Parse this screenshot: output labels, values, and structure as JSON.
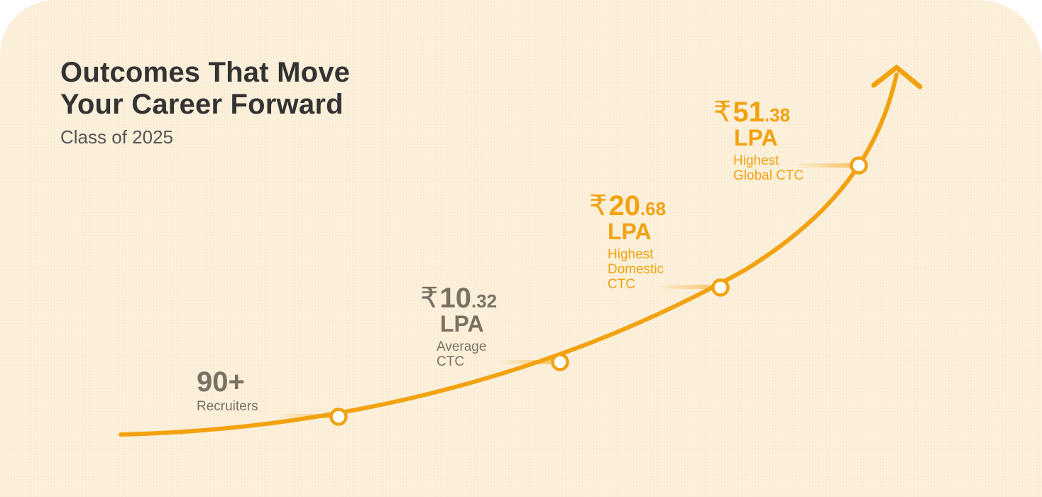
{
  "heading": {
    "line1": "Outcomes That Move",
    "line2": "Your Career Forward"
  },
  "subtitle": "Class of 2025",
  "colors": {
    "background": "#fdf1dc",
    "curve": "#f2a20f",
    "muted_text": "#7a7064",
    "heading_text": "#333333"
  },
  "milestones": [
    {
      "value": "90+",
      "label": "Recruiters"
    },
    {
      "currency": "₹",
      "whole": "10",
      "decimal": ".32",
      "unit": "LPA",
      "label_line1": "Average",
      "label_line2": "CTC"
    },
    {
      "currency": "₹",
      "whole": "20",
      "decimal": ".68",
      "unit": "LPA",
      "label_line1": "Highest",
      "label_line2": "Domestic",
      "label_line3": "CTC"
    },
    {
      "currency": "₹",
      "whole": "51",
      "decimal": ".38",
      "unit": "LPA",
      "label_line1": "Highest",
      "label_line2": "Global CTC"
    }
  ]
}
